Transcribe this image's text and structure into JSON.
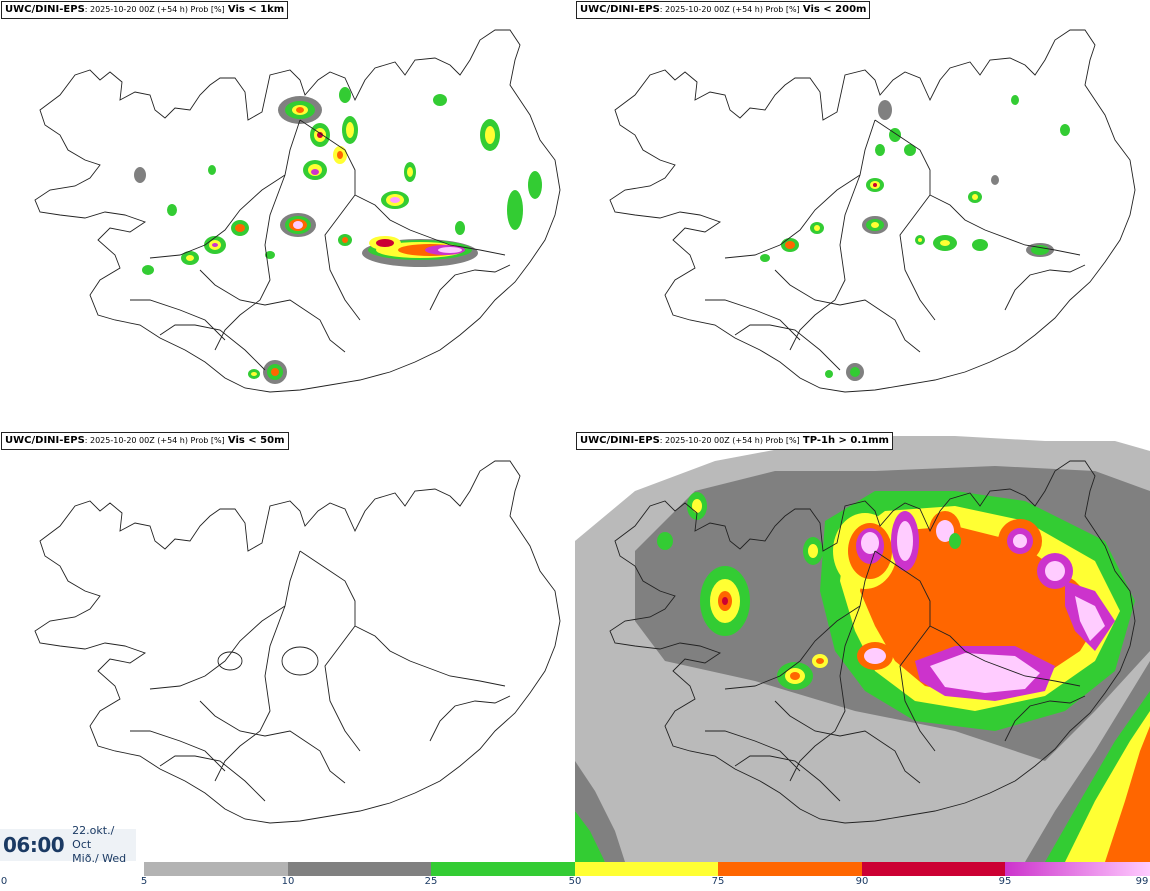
{
  "panels": [
    {
      "model": "UWC/DINI-EPS",
      "run": ": 2025-10-20 00Z (+54 h) Prob [%]",
      "variable": "Vis < 1km"
    },
    {
      "model": "UWC/DINI-EPS",
      "run": ": 2025-10-20 00Z (+54 h) Prob [%]",
      "variable": "Vis < 200m"
    },
    {
      "model": "UWC/DINI-EPS",
      "run": ": 2025-10-20 00Z (+54 h) Prob [%]",
      "variable": "Vis < 50m"
    },
    {
      "model": "UWC/DINI-EPS",
      "run": ": 2025-10-20 00Z (+54 h) Prob [%]",
      "variable": "TP-1h > 0.1mm"
    }
  ],
  "valid_time": {
    "time": "06:00",
    "date_line": "22.okt./ Oct",
    "day_line": "Mið./ Wed"
  },
  "legend": {
    "ticks": [
      "0",
      "5",
      "10",
      "25",
      "50",
      "75",
      "90",
      "95",
      "99"
    ],
    "colors": {
      "c5": "#b3b3b3",
      "c10": "#808080",
      "c25": "#33cc33",
      "c50": "#ffff33",
      "c75": "#ff6600",
      "c90": "#cc0033",
      "c95_start": "#cc33cc",
      "c99_end": "#ffccff"
    }
  }
}
